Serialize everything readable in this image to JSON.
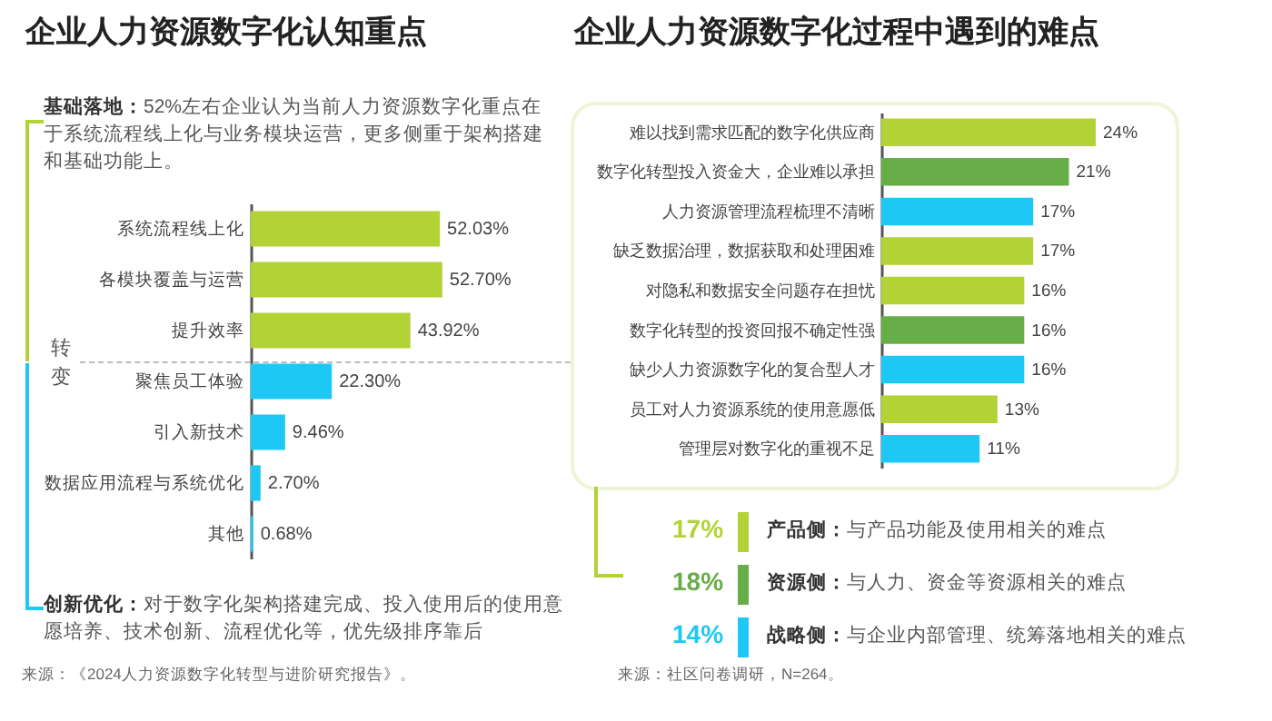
{
  "chart_data": [
    {
      "type": "bar",
      "orientation": "horizontal",
      "title": "企业人力资源数字化认知重点",
      "categories": [
        "系统流程线上化",
        "各模块覆盖与运营",
        "提升效率",
        "聚焦员工体验",
        "引入新技术",
        "数据应用流程与系统优化",
        "其他"
      ],
      "values": [
        52.03,
        52.7,
        43.92,
        22.3,
        9.46,
        2.7,
        0.68
      ],
      "value_labels": [
        "52.03%",
        "52.70%",
        "43.92%",
        "22.30%",
        "9.46%",
        "2.70%",
        "0.68%"
      ],
      "colors": [
        "#b2d235",
        "#b2d235",
        "#b2d235",
        "#1ec8f5",
        "#1ec8f5",
        "#1ec8f5",
        "#1ec8f5"
      ],
      "annotations": [
        "基础落地：52%左右企业认为当前人力资源数字化重点在于系统流程线上化与业务模块运营，更多侧重于架构搭建和基础功能上。",
        "转变",
        "创新优化：对于数字化架构搭建完成、投入使用后的使用意愿培养、技术创新、流程优化等，优先级排序靠后",
        "来源：《2024人力资源数字化转型与进阶研究报告》。"
      ]
    },
    {
      "type": "bar",
      "orientation": "horizontal",
      "title": "企业人力资源数字化过程中遇到的难点",
      "categories": [
        "难以找到需求匹配的数字化供应商",
        "数字化转型投入资金大，企业难以承担",
        "人力资源管理流程梳理不清晰",
        "缺乏数据治理，数据获取和处理困难",
        "对隐私和数据安全问题存在担忧",
        "数字化转型的投资回报不确定性强",
        "缺少人力资源数字化的复合型人才",
        "员工对人力资源系统的使用意愿低",
        "管理层对数字化的重视不足"
      ],
      "values": [
        24,
        21,
        17,
        17,
        16,
        16,
        16,
        13,
        11
      ],
      "value_labels": [
        "24%",
        "21%",
        "17%",
        "17%",
        "16%",
        "16%",
        "16%",
        "13%",
        "11%"
      ],
      "colors": [
        "#b2d235",
        "#67ad48",
        "#1ec8f5",
        "#b2d235",
        "#b2d235",
        "#67ad48",
        "#1ec8f5",
        "#b2d235",
        "#1ec8f5"
      ],
      "annotations": [
        "17%",
        "产品侧：与产品功能及使用相关的难点",
        "18%",
        "资源侧：与人力、资金等资源相关的难点",
        "14%",
        "战略侧：与企业内部管理、统筹落地相关的难点",
        "来源：社区问卷调研，N=264。"
      ]
    }
  ]
}
